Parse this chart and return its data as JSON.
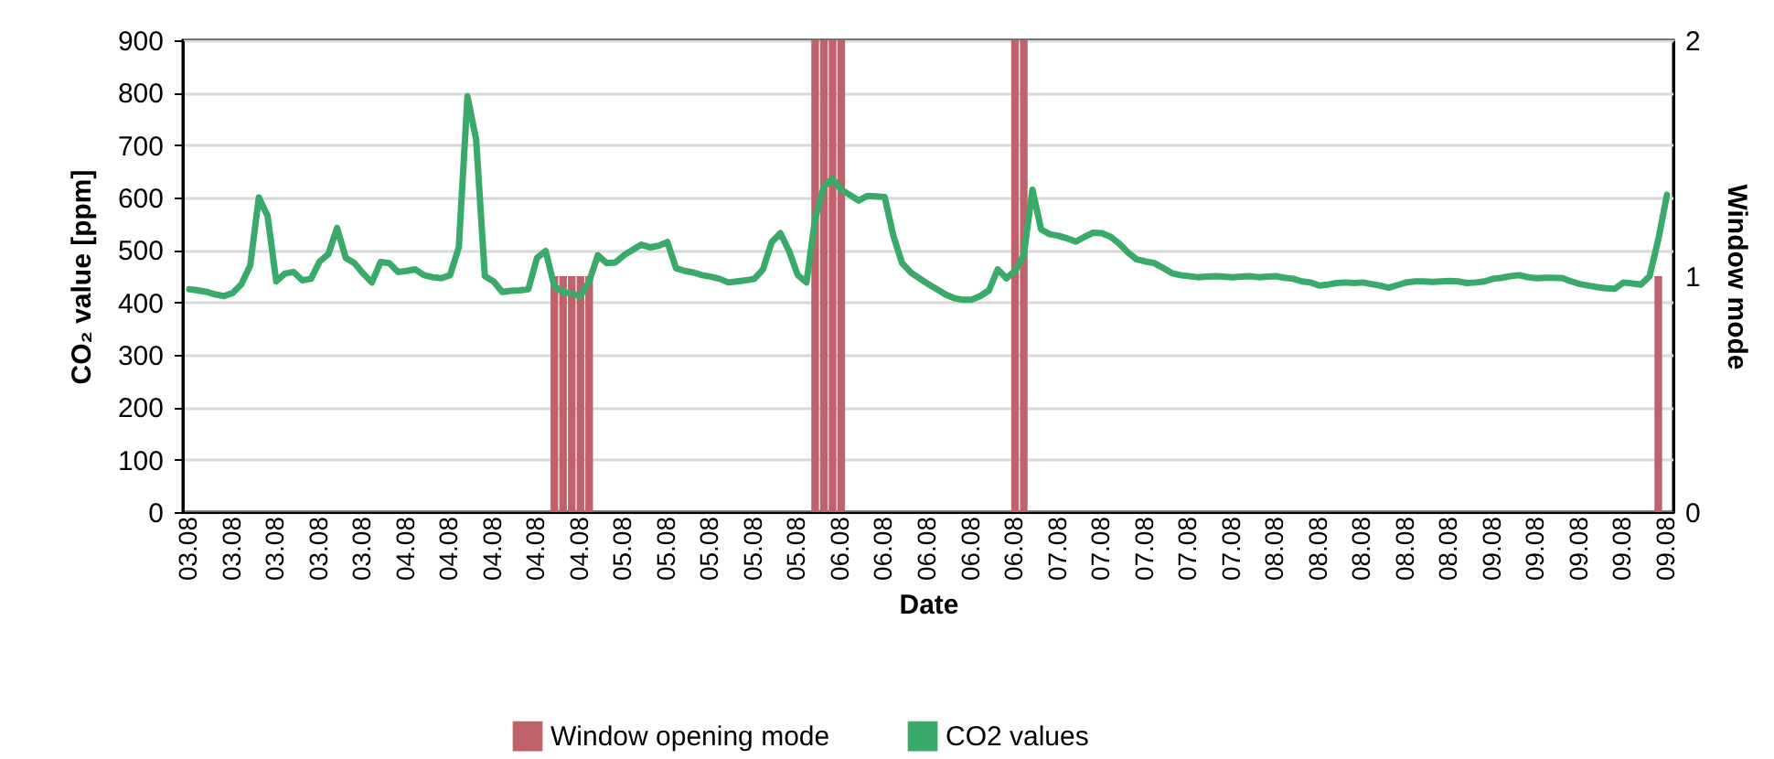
{
  "chart_data": {
    "type": "line",
    "xlabel": "Date",
    "ylabel": "CO₂ value [ppm]",
    "y2label": "Window mode",
    "categories": [
      "03.08",
      null,
      null,
      null,
      null,
      "03.08",
      null,
      null,
      null,
      null,
      "03.08",
      null,
      null,
      null,
      null,
      "03.08",
      null,
      null,
      null,
      null,
      "03.08",
      null,
      null,
      null,
      null,
      "04.08",
      null,
      null,
      null,
      null,
      "04.08",
      null,
      null,
      null,
      null,
      "04.08",
      null,
      null,
      null,
      null,
      "04.08",
      null,
      null,
      null,
      null,
      "04.08",
      null,
      null,
      null,
      null,
      "05.08",
      null,
      null,
      null,
      null,
      "05.08",
      null,
      null,
      null,
      null,
      "05.08",
      null,
      null,
      null,
      null,
      "05.08",
      null,
      null,
      null,
      null,
      "05.08",
      null,
      null,
      null,
      null,
      "06.08",
      null,
      null,
      null,
      null,
      "06.08",
      null,
      null,
      null,
      null,
      "06.08",
      null,
      null,
      null,
      null,
      "06.08",
      null,
      null,
      null,
      null,
      "06.08",
      null,
      null,
      null,
      null,
      "07.08",
      null,
      null,
      null,
      null,
      "07.08",
      null,
      null,
      null,
      null,
      "07.08",
      null,
      null,
      null,
      null,
      "07.08",
      null,
      null,
      null,
      null,
      "07.08",
      null,
      null,
      null,
      null,
      "08.08",
      null,
      null,
      null,
      null,
      "08.08",
      null,
      null,
      null,
      null,
      "08.08",
      null,
      null,
      null,
      null,
      "08.08",
      null,
      null,
      null,
      null,
      "08.08",
      null,
      null,
      null,
      null,
      "09.08",
      null,
      null,
      null,
      null,
      "09.08",
      null,
      null,
      null,
      null,
      "09.08",
      null,
      null,
      null,
      null,
      "09.08",
      null,
      null,
      null,
      null,
      "09.08"
    ],
    "series": [
      {
        "name": "Window opening mode",
        "type": "bar",
        "axis": "y2",
        "color": "#c0626b",
        "values": [
          0,
          0,
          0,
          0,
          0,
          0,
          0,
          0,
          0,
          0,
          0,
          0,
          0,
          0,
          0,
          0,
          0,
          0,
          0,
          0,
          0,
          0,
          0,
          0,
          0,
          0,
          0,
          0,
          0,
          0,
          0,
          0,
          0,
          0,
          0,
          0,
          0,
          0,
          0,
          0,
          0,
          0,
          1,
          1,
          1,
          1,
          1,
          0,
          0,
          0,
          0,
          0,
          0,
          0,
          0,
          0,
          0,
          0,
          0,
          0,
          0,
          0,
          0,
          0,
          0,
          0,
          0,
          0,
          0,
          0,
          0,
          0,
          2,
          2,
          2,
          2,
          0,
          0,
          0,
          0,
          0,
          0,
          0,
          0,
          0,
          0,
          0,
          0,
          0,
          0,
          0,
          0,
          0,
          0,
          0,
          2,
          2,
          0,
          0,
          0,
          0,
          0,
          0,
          0,
          0,
          0,
          0,
          0,
          0,
          0,
          0,
          0,
          0,
          0,
          0,
          0,
          0,
          0,
          0,
          0,
          0,
          0,
          0,
          0,
          0,
          0,
          0,
          0,
          0,
          0,
          0,
          0,
          0,
          0,
          0,
          0,
          0,
          0,
          0,
          0,
          0,
          0,
          0,
          0,
          0,
          0,
          0,
          0,
          0,
          0,
          0,
          0,
          0,
          0,
          0,
          0,
          0,
          0,
          0,
          0,
          0,
          0,
          0,
          0,
          0,
          0,
          0,
          0,
          0,
          1,
          0
        ]
      },
      {
        "name": "CO2 values",
        "type": "line",
        "color": "#3aaa6a",
        "values": [
          425,
          423,
          420,
          415,
          412,
          418,
          435,
          470,
          600,
          565,
          440,
          455,
          458,
          442,
          445,
          478,
          492,
          542,
          485,
          475,
          455,
          438,
          477,
          475,
          458,
          460,
          463,
          452,
          448,
          446,
          452,
          505,
          793,
          710,
          450,
          440,
          420,
          422,
          423,
          425,
          485,
          498,
          430,
          420,
          417,
          412,
          440,
          490,
          475,
          476,
          490,
          500,
          510,
          505,
          508,
          515,
          465,
          460,
          457,
          452,
          449,
          445,
          438,
          440,
          442,
          445,
          463,
          515,
          532,
          498,
          452,
          438,
          560,
          620,
          636,
          615,
          605,
          594,
          603,
          602,
          601,
          527,
          475,
          457,
          446,
          435,
          425,
          415,
          408,
          405,
          405,
          412,
          423,
          463,
          446,
          460,
          490,
          615,
          539,
          530,
          527,
          522,
          516,
          525,
          533,
          532,
          525,
          512,
          495,
          482,
          478,
          475,
          466,
          456,
          452,
          450,
          448,
          449,
          450,
          449,
          448,
          449,
          450,
          448,
          449,
          450,
          447,
          445,
          440,
          438,
          432,
          434,
          437,
          438,
          437,
          438,
          435,
          432,
          428,
          433,
          438,
          440,
          440,
          439,
          440,
          441,
          440,
          437,
          438,
          440,
          445,
          447,
          450,
          452,
          448,
          446,
          447,
          447,
          446,
          440,
          435,
          432,
          429,
          427,
          426,
          438,
          436,
          434,
          450,
          520,
          605
        ]
      }
    ],
    "ylim": [
      0,
      900
    ],
    "yticks": [
      0,
      100,
      200,
      300,
      400,
      500,
      600,
      700,
      800,
      900
    ],
    "y2lim": [
      0,
      2
    ],
    "y2ticks": [
      0,
      1,
      2
    ],
    "grid": "y",
    "legend": "bottom"
  }
}
